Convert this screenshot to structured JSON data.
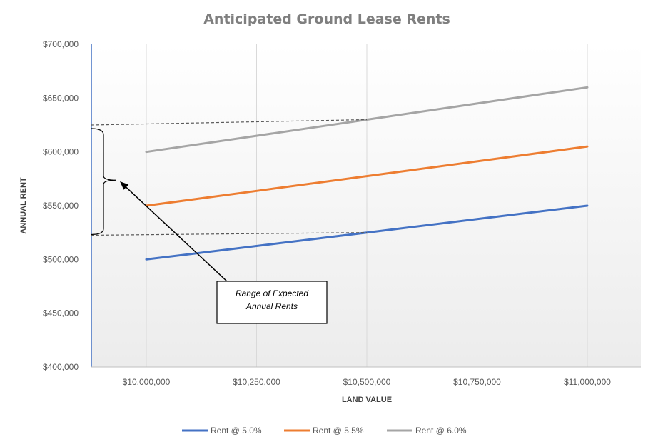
{
  "chart_data": {
    "type": "line",
    "title": "Anticipated Ground Lease Rents",
    "xlabel": "LAND VALUE",
    "ylabel": "ANNUAL RENT",
    "x": [
      10000000,
      10250000,
      10500000,
      10750000,
      11000000
    ],
    "x_tick_labels": [
      "$10,000,000",
      "$10,250,000",
      "$10,500,000",
      "$10,750,000",
      "$11,000,000"
    ],
    "ylim": [
      400000,
      700000
    ],
    "y_tick_values": [
      400000,
      450000,
      500000,
      550000,
      600000,
      650000,
      700000
    ],
    "y_tick_labels": [
      "$400,000",
      "$450,000",
      "$500,000",
      "$550,000",
      "$600,000",
      "$650,000",
      "$700,000"
    ],
    "series": [
      {
        "name": "Rent @ 5.0%",
        "color": "#4472c4",
        "values": [
          500000,
          512500,
          525000,
          537500,
          550000
        ]
      },
      {
        "name": "Rent @ 5.5%",
        "color": "#ed7d31",
        "values": [
          550000,
          563750,
          577500,
          591250,
          605000
        ]
      },
      {
        "name": "Rent @ 6.0%",
        "color": "#a5a5a5",
        "values": [
          600000,
          615000,
          630000,
          645000,
          660000
        ]
      }
    ],
    "grid": "vertical",
    "legend": "bottom",
    "annotation": {
      "text_line1": "Range of Expected",
      "text_line2": "Annual Rents",
      "range_low": 522500,
      "range_high": 625000,
      "low_anchor_x": 10500000,
      "low_anchor_y": 525000,
      "high_anchor_x": 10500000,
      "high_anchor_y": 630000
    }
  }
}
